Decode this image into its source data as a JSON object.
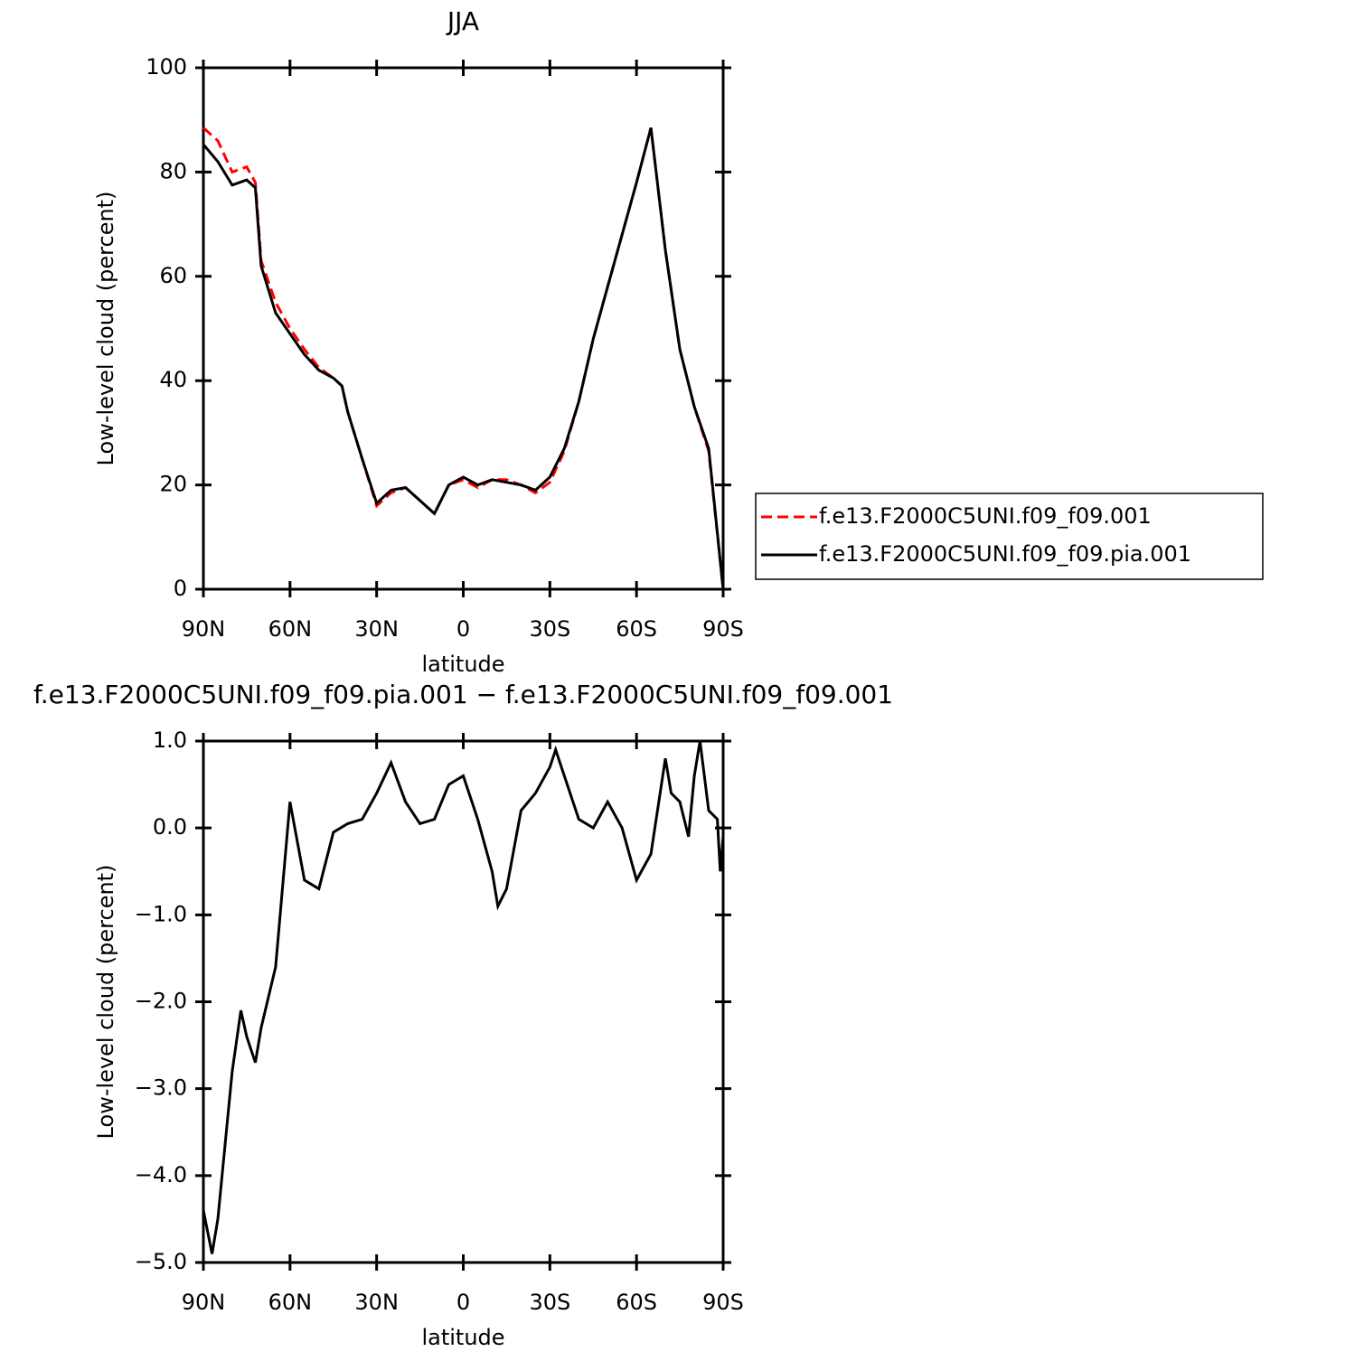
{
  "chart_data": [
    {
      "type": "line",
      "title": "JJA",
      "xlabel": "latitude",
      "ylabel": "Low-level cloud (percent)",
      "x": [
        90,
        85,
        80,
        75,
        72,
        70,
        65,
        60,
        55,
        50,
        45,
        42,
        40,
        35,
        30,
        25,
        20,
        15,
        10,
        5,
        0,
        -5,
        -10,
        -15,
        -20,
        -25,
        -30,
        -35,
        -40,
        -45,
        -50,
        -55,
        -60,
        -65,
        -70,
        -75,
        -80,
        -85,
        -90
      ],
      "xlim": [
        90,
        -90
      ],
      "xticks": [
        {
          "value": 90,
          "label": "90N"
        },
        {
          "value": 60,
          "label": "60N"
        },
        {
          "value": 30,
          "label": "30N"
        },
        0,
        {
          "value": -30,
          "label": "30S"
        },
        {
          "value": -60,
          "label": "60S"
        },
        {
          "value": -90,
          "label": "90S"
        }
      ],
      "ylim": [
        0,
        100
      ],
      "yticks": [
        0,
        20,
        40,
        60,
        80,
        100
      ],
      "legend": "right",
      "series": [
        {
          "name": "f.e13.F2000C5UNI.f09_f09.001",
          "color": "#ff0000",
          "line_style": "dashed",
          "values": [
            88.5,
            86,
            80,
            81,
            78,
            63,
            55,
            50,
            46,
            42.5,
            40.5,
            39,
            34,
            25,
            16,
            18.5,
            19.5,
            17,
            14.5,
            20,
            21,
            19.5,
            21,
            21,
            20,
            18.5,
            20.5,
            26.5,
            36,
            48,
            58,
            68,
            78,
            88.5,
            65,
            46,
            35,
            26.5,
            0
          ]
        },
        {
          "name": "f.e13.F2000C5UNI.f09_f09.pia.001",
          "color": "#000000",
          "line_style": "solid",
          "values": [
            85.3,
            82,
            77.5,
            78.5,
            77,
            62,
            53,
            49,
            45,
            42,
            40.5,
            39,
            34,
            25,
            16.5,
            19,
            19.5,
            17,
            14.5,
            20,
            21.5,
            20,
            21,
            20.5,
            20,
            19,
            21.5,
            27,
            36,
            48,
            58,
            68,
            78,
            88.5,
            65,
            46,
            35,
            27,
            0
          ]
        }
      ]
    },
    {
      "type": "line",
      "title": "f.e13.F2000C5UNI.f09_f09.pia.001 − f.e13.F2000C5UNI.f09_f09.001",
      "xlabel": "latitude",
      "ylabel": "Low-level cloud (percent)",
      "x": [
        90,
        87,
        85,
        80,
        77,
        75,
        72,
        70,
        65,
        60,
        55,
        50,
        45,
        40,
        35,
        30,
        25,
        20,
        15,
        10,
        5,
        0,
        -5,
        -10,
        -12,
        -15,
        -20,
        -25,
        -30,
        -32,
        -35,
        -40,
        -45,
        -50,
        -55,
        -60,
        -65,
        -70,
        -72,
        -75,
        -78,
        -80,
        -82,
        -85,
        -88,
        -89,
        -90
      ],
      "xlim": [
        90,
        -90
      ],
      "xticks": [
        {
          "value": 90,
          "label": "90N"
        },
        {
          "value": 60,
          "label": "60N"
        },
        {
          "value": 30,
          "label": "30N"
        },
        0,
        {
          "value": -30,
          "label": "30S"
        },
        {
          "value": -60,
          "label": "60S"
        },
        {
          "value": -90,
          "label": "90S"
        }
      ],
      "ylim": [
        -5,
        1
      ],
      "yticks": [
        {
          "value": -5,
          "label": "−5.0"
        },
        {
          "value": -4,
          "label": "−4.0"
        },
        {
          "value": -3,
          "label": "−3.0"
        },
        {
          "value": -2,
          "label": "−2.0"
        },
        {
          "value": -1,
          "label": "−1.0"
        },
        {
          "value": 0,
          "label": "0.0"
        },
        {
          "value": 1,
          "label": "1.0"
        }
      ],
      "color": "#000000",
      "values": [
        -4.4,
        -4.9,
        -4.5,
        -2.8,
        -2.1,
        -2.4,
        -2.7,
        -2.3,
        -1.6,
        0.3,
        -0.6,
        -0.7,
        -0.05,
        0.05,
        0.1,
        0.4,
        0.75,
        0.3,
        0.05,
        0.1,
        0.5,
        0.6,
        0.1,
        -0.5,
        -0.9,
        -0.7,
        0.2,
        0.4,
        0.7,
        0.9,
        0.6,
        0.1,
        0.0,
        0.3,
        0.0,
        -0.6,
        -0.3,
        0.8,
        0.4,
        0.3,
        -0.1,
        0.6,
        1.0,
        0.2,
        0.1,
        -0.5,
        -0.1
      ]
    }
  ]
}
